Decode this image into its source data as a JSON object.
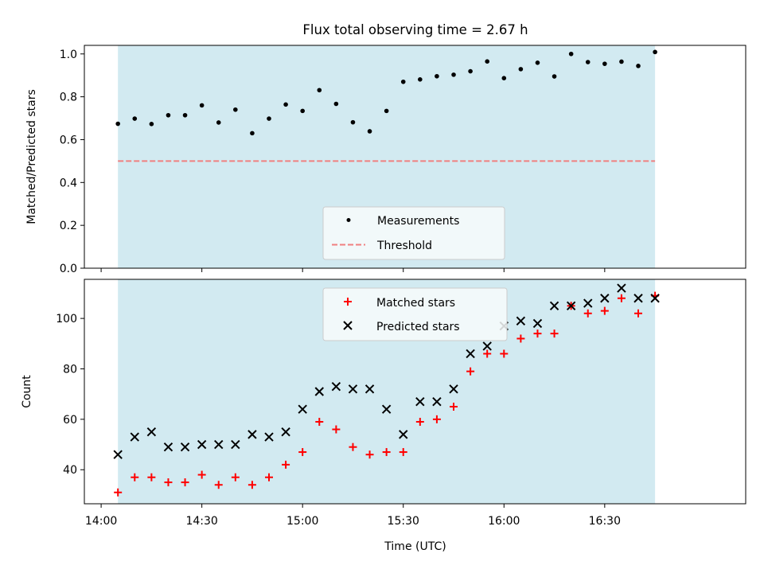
{
  "title": "Flux total observing time = 2.67 h",
  "colors": {
    "shade": "#add8e6",
    "threshold": "#f08080",
    "matched": "#ff0000",
    "predicted": "#000000",
    "measurement": "#000000"
  },
  "x_axis": {
    "label": "Time (UTC)",
    "ticks": [
      {
        "minutes": 0,
        "label": "14:00"
      },
      {
        "minutes": 30,
        "label": "14:30"
      },
      {
        "minutes": 60,
        "label": "15:00"
      },
      {
        "minutes": 90,
        "label": "15:30"
      },
      {
        "minutes": 120,
        "label": "16:00"
      },
      {
        "minutes": 150,
        "label": "16:30"
      }
    ]
  },
  "chart_data": [
    {
      "type": "scatter",
      "panel": "top",
      "title": "Flux total observing time = 2.67 h",
      "ylabel": "Matched/Predicted stars",
      "xlabel": "",
      "xlim": [
        "13:55",
        "17:12"
      ],
      "ylim": [
        0,
        1.04
      ],
      "yticks": [
        "0.0",
        "0.2",
        "0.4",
        "0.6",
        "0.8",
        "1.0"
      ],
      "shaded_interval": [
        "14:05",
        "16:45"
      ],
      "threshold": 0.5,
      "legend_position": "lower-center",
      "legend": [
        "Measurements",
        "Threshold"
      ],
      "x": [
        "14:05",
        "14:10",
        "14:15",
        "14:20",
        "14:25",
        "14:30",
        "14:35",
        "14:40",
        "14:45",
        "14:50",
        "14:55",
        "15:00",
        "15:05",
        "15:10",
        "15:15",
        "15:20",
        "15:25",
        "15:30",
        "15:35",
        "15:40",
        "15:45",
        "15:50",
        "15:55",
        "16:00",
        "16:05",
        "16:10",
        "16:15",
        "16:20",
        "16:25",
        "16:30",
        "16:35",
        "16:40",
        "16:45"
      ],
      "series": [
        {
          "name": "Measurements",
          "values": [
            0.674,
            0.698,
            0.673,
            0.714,
            0.714,
            0.76,
            0.68,
            0.74,
            0.63,
            0.698,
            0.764,
            0.734,
            0.831,
            0.767,
            0.681,
            0.639,
            0.734,
            0.87,
            0.881,
            0.896,
            0.903,
            0.919,
            0.965,
            0.887,
            0.929,
            0.959,
            0.895,
            1.0,
            0.962,
            0.954,
            0.964,
            0.944,
            1.009
          ]
        }
      ]
    },
    {
      "type": "scatter",
      "panel": "bottom",
      "xlabel": "Time (UTC)",
      "ylabel": "Count",
      "xlim": [
        "13:55",
        "17:12"
      ],
      "ylim": [
        26.5,
        115.5
      ],
      "yticks": [
        "40",
        "60",
        "80",
        "100"
      ],
      "shaded_interval": [
        "14:05",
        "16:45"
      ],
      "legend_position": "upper-center",
      "x": [
        "14:05",
        "14:10",
        "14:15",
        "14:20",
        "14:25",
        "14:30",
        "14:35",
        "14:40",
        "14:45",
        "14:50",
        "14:55",
        "15:00",
        "15:05",
        "15:10",
        "15:15",
        "15:20",
        "15:25",
        "15:30",
        "15:35",
        "15:40",
        "15:45",
        "15:50",
        "15:55",
        "16:00",
        "16:05",
        "16:10",
        "16:15",
        "16:20",
        "16:25",
        "16:30",
        "16:35",
        "16:40",
        "16:45"
      ],
      "series": [
        {
          "name": "Matched stars",
          "values": [
            31,
            37,
            37,
            35,
            35,
            38,
            34,
            37,
            34,
            37,
            42,
            47,
            59,
            56,
            49,
            46,
            47,
            47,
            59,
            60,
            65,
            79,
            86,
            86,
            92,
            94,
            94,
            105,
            102,
            103,
            108,
            102,
            109
          ]
        },
        {
          "name": "Predicted stars",
          "values": [
            46,
            53,
            55,
            49,
            49,
            50,
            50,
            50,
            54,
            53,
            55,
            64,
            71,
            73,
            72,
            72,
            64,
            54,
            67,
            67,
            72,
            86,
            89,
            97,
            99,
            98,
            105,
            105,
            106,
            108,
            112,
            108,
            108
          ]
        }
      ]
    }
  ]
}
